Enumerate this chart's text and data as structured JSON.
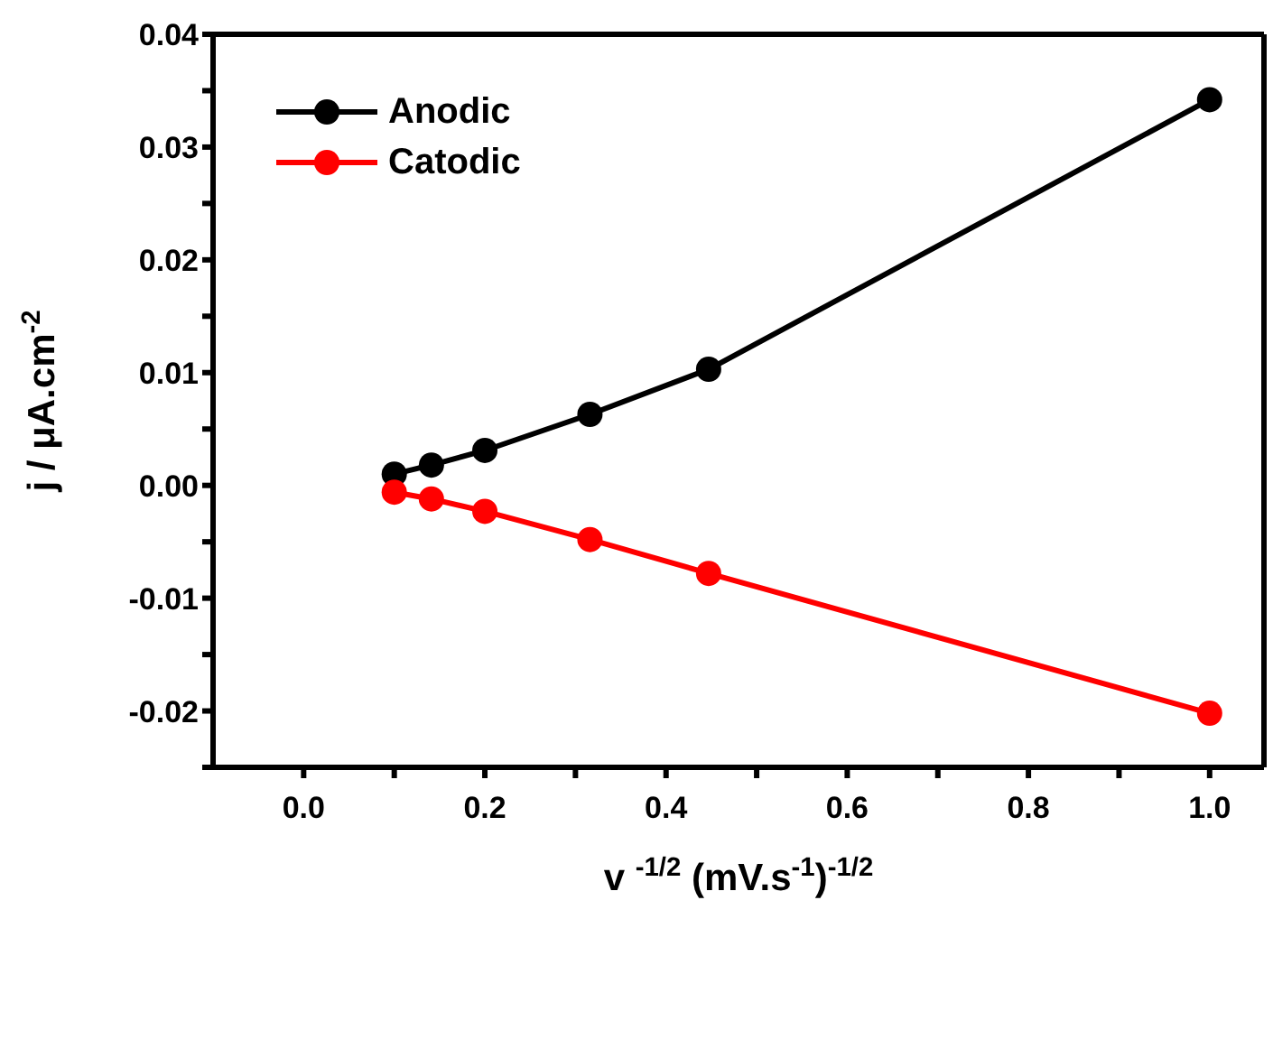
{
  "chart_data": {
    "type": "line",
    "xlabel": "v $^{-1/2}$ (mV.s$^{-1}$)$^{-1/2}$",
    "ylabel": "j / μA.cm$^{-2}$",
    "x": [
      0.1,
      0.141,
      0.2,
      0.316,
      0.447,
      1.0
    ],
    "series": [
      {
        "name": "Anodic",
        "color": "#000000",
        "values": [
          0.001,
          0.0018,
          0.0031,
          0.0063,
          0.0103,
          0.0342
        ]
      },
      {
        "name": "Catodic",
        "color": "#ff0000",
        "values": [
          -0.0006,
          -0.0012,
          -0.0023,
          -0.0048,
          -0.0078,
          -0.0202
        ]
      }
    ],
    "xlim": [
      -0.1,
      1.06
    ],
    "xticks": [
      {
        "value": 0,
        "label": "0.0"
      },
      {
        "value": 0.1,
        "label": null
      },
      0.2,
      {
        "value": 0.3,
        "label": null
      },
      0.4,
      {
        "value": 0.5,
        "label": null
      },
      0.6,
      {
        "value": 0.7,
        "label": null
      },
      0.8,
      {
        "value": 0.9,
        "label": null
      },
      {
        "value": 1,
        "label": "1.0"
      }
    ],
    "ylim": [
      -0.025,
      0.04
    ],
    "yticks": [
      {
        "value": -0.025,
        "label": null
      },
      -0.02,
      {
        "value": -0.015,
        "label": null
      },
      -0.01,
      {
        "value": -0.005,
        "label": null
      },
      {
        "value": 0,
        "label": "0.00"
      },
      {
        "value": 0.005,
        "label": null
      },
      0.01,
      {
        "value": 0.015,
        "label": null
      },
      0.02,
      {
        "value": 0.025,
        "label": null
      },
      0.03,
      {
        "value": 0.035,
        "label": null
      },
      0.04
    ],
    "legend": "top left",
    "marker": "circle",
    "line_style": "solid",
    "grid": false
  }
}
